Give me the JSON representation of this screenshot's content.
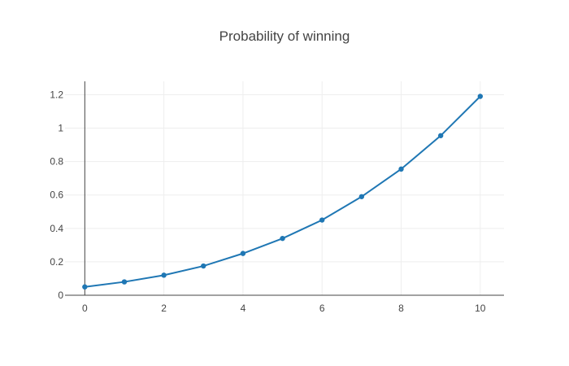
{
  "chart_data": {
    "type": "line",
    "title": "Probability of winning",
    "xlabel": "",
    "ylabel": "",
    "xlim": [
      -0.5,
      10.6
    ],
    "ylim": [
      0,
      1.28
    ],
    "xticks": [
      0,
      2,
      4,
      6,
      8,
      10
    ],
    "xtick_labels": [
      "0",
      "2",
      "4",
      "6",
      "8",
      "10"
    ],
    "yticks": [
      0,
      0.2,
      0.4,
      0.6,
      0.8,
      1,
      1.2
    ],
    "ytick_labels": [
      "0",
      "0.2",
      "0.4",
      "0.6",
      "0.8",
      "1",
      "1.2"
    ],
    "grid": true,
    "legend": "none",
    "series": [
      {
        "color": "#1f77b4",
        "markers": true,
        "x": [
          0,
          1,
          2,
          3,
          4,
          5,
          6,
          7,
          8,
          9,
          10
        ],
        "y": [
          0.05,
          0.08,
          0.12,
          0.175,
          0.25,
          0.34,
          0.45,
          0.59,
          0.755,
          0.955,
          1.19
        ]
      }
    ]
  }
}
